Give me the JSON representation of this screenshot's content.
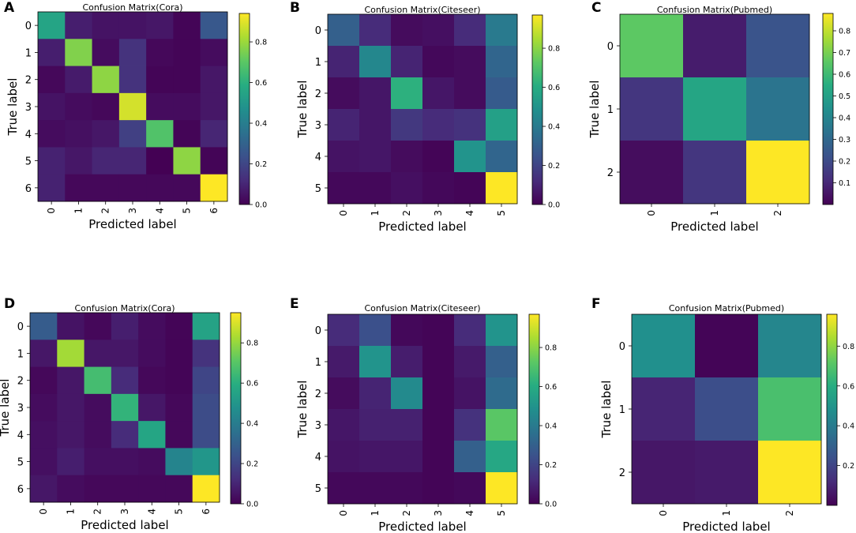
{
  "figure": {
    "background": "#ffffff",
    "colormap": "viridis"
  },
  "chart_data": [
    {
      "panel_label": "A",
      "type": "heatmap",
      "title": "Confusion Matrix(Cora)",
      "xlabel": "Predicted label",
      "ylabel": "True label",
      "x_ticks": [
        "0",
        "1",
        "2",
        "3",
        "4",
        "5",
        "6"
      ],
      "y_ticks": [
        "0",
        "1",
        "2",
        "3",
        "4",
        "5",
        "6"
      ],
      "values": [
        [
          0.55,
          0.08,
          0.05,
          0.05,
          0.06,
          0.01,
          0.26
        ],
        [
          0.08,
          0.76,
          0.03,
          0.14,
          0.02,
          0.01,
          0.03
        ],
        [
          0.02,
          0.07,
          0.78,
          0.14,
          0.01,
          0.01,
          0.06
        ],
        [
          0.05,
          0.03,
          0.02,
          0.88,
          0.03,
          0.03,
          0.06
        ],
        [
          0.03,
          0.04,
          0.06,
          0.18,
          0.68,
          0.01,
          0.1
        ],
        [
          0.09,
          0.06,
          0.1,
          0.1,
          0.0,
          0.78,
          0.01
        ],
        [
          0.09,
          0.02,
          0.02,
          0.02,
          0.02,
          0.02,
          0.94
        ]
      ],
      "colorbar": {
        "min": 0.0,
        "max": 0.94,
        "ticks": [
          0.0,
          0.2,
          0.4,
          0.6,
          0.8
        ],
        "tick_labels": [
          "0.0",
          "0.2",
          "0.4",
          "0.6",
          "0.8"
        ]
      }
    },
    {
      "panel_label": "B",
      "type": "heatmap",
      "title": "Confusion Matrix(Citeseer)",
      "xlabel": "Predicted label",
      "ylabel": "True label",
      "x_ticks": [
        "0",
        "1",
        "2",
        "3",
        "4",
        "5"
      ],
      "y_ticks": [
        "0",
        "1",
        "2",
        "3",
        "4",
        "5"
      ],
      "values": [
        [
          0.3,
          0.12,
          0.03,
          0.04,
          0.12,
          0.4
        ],
        [
          0.1,
          0.45,
          0.1,
          0.02,
          0.03,
          0.32
        ],
        [
          0.03,
          0.06,
          0.62,
          0.06,
          0.03,
          0.28
        ],
        [
          0.1,
          0.06,
          0.16,
          0.12,
          0.14,
          0.55
        ],
        [
          0.05,
          0.06,
          0.03,
          0.01,
          0.5,
          0.32
        ],
        [
          0.02,
          0.02,
          0.04,
          0.02,
          0.01,
          0.97
        ]
      ],
      "colorbar": {
        "min": 0.0,
        "max": 0.97,
        "ticks": [
          0.0,
          0.2,
          0.4,
          0.6,
          0.8
        ],
        "tick_labels": [
          "0.0",
          "0.2",
          "0.4",
          "0.6",
          "0.8"
        ]
      }
    },
    {
      "panel_label": "C",
      "type": "heatmap",
      "title": "Confusion Matrix(Pubmed)",
      "xlabel": "Predicted label",
      "ylabel": "True label",
      "x_ticks": [
        "0",
        "1",
        "2"
      ],
      "y_ticks": [
        "0",
        "1",
        "2"
      ],
      "values": [
        [
          0.66,
          0.07,
          0.23
        ],
        [
          0.14,
          0.52,
          0.34
        ],
        [
          0.03,
          0.14,
          0.88
        ]
      ],
      "colorbar": {
        "min": 0.0,
        "max": 0.88,
        "ticks": [
          0.1,
          0.2,
          0.3,
          0.4,
          0.5,
          0.6,
          0.7,
          0.8
        ],
        "tick_labels": [
          "0.1",
          "0.2",
          "0.3",
          "0.4",
          "0.5",
          "0.6",
          "0.7",
          "0.8"
        ]
      }
    },
    {
      "panel_label": "D",
      "type": "heatmap",
      "title": "Confusion Matrix(Cora)",
      "xlabel": "Predicted label",
      "ylabel": "True label",
      "x_ticks": [
        "0",
        "1",
        "2",
        "3",
        "4",
        "5",
        "6"
      ],
      "y_ticks": [
        "0",
        "1",
        "2",
        "3",
        "4",
        "5",
        "6"
      ],
      "values": [
        [
          0.28,
          0.05,
          0.02,
          0.08,
          0.03,
          0.01,
          0.55
        ],
        [
          0.06,
          0.82,
          0.06,
          0.06,
          0.03,
          0.01,
          0.14
        ],
        [
          0.02,
          0.06,
          0.66,
          0.12,
          0.02,
          0.01,
          0.2
        ],
        [
          0.03,
          0.06,
          0.03,
          0.62,
          0.06,
          0.02,
          0.22
        ],
        [
          0.04,
          0.06,
          0.03,
          0.12,
          0.56,
          0.02,
          0.22
        ],
        [
          0.04,
          0.08,
          0.04,
          0.04,
          0.03,
          0.43,
          0.5
        ],
        [
          0.06,
          0.03,
          0.02,
          0.02,
          0.02,
          0.02,
          0.95
        ]
      ],
      "colorbar": {
        "min": 0.0,
        "max": 0.95,
        "ticks": [
          0.0,
          0.2,
          0.4,
          0.6,
          0.8
        ],
        "tick_labels": [
          "0.0",
          "0.2",
          "0.4",
          "0.6",
          "0.8"
        ]
      }
    },
    {
      "panel_label": "E",
      "type": "heatmap",
      "title": "Confusion Matrix(Citeseer)",
      "xlabel": "Predicted label",
      "ylabel": "True label",
      "x_ticks": [
        "0",
        "1",
        "2",
        "3",
        "4",
        "5"
      ],
      "y_ticks": [
        "0",
        "1",
        "2",
        "3",
        "4",
        "5"
      ],
      "values": [
        [
          0.12,
          0.24,
          0.02,
          0.01,
          0.12,
          0.5
        ],
        [
          0.07,
          0.5,
          0.08,
          0.01,
          0.07,
          0.3
        ],
        [
          0.03,
          0.1,
          0.46,
          0.01,
          0.05,
          0.34
        ],
        [
          0.06,
          0.09,
          0.09,
          0.01,
          0.14,
          0.72
        ],
        [
          0.05,
          0.06,
          0.06,
          0.01,
          0.3,
          0.58
        ],
        [
          0.02,
          0.02,
          0.02,
          0.01,
          0.02,
          0.97
        ]
      ],
      "colorbar": {
        "min": 0.0,
        "max": 0.97,
        "ticks": [
          0.0,
          0.2,
          0.4,
          0.6,
          0.8
        ],
        "tick_labels": [
          "0.0",
          "0.2",
          "0.4",
          "0.6",
          "0.8"
        ]
      }
    },
    {
      "panel_label": "F",
      "type": "heatmap",
      "title": "Confusion Matrix(Pubmed)",
      "xlabel": "Predicted label",
      "ylabel": "True label",
      "x_ticks": [
        "0",
        "1",
        "2"
      ],
      "y_ticks": [
        "0",
        "1",
        "2"
      ],
      "values": [
        [
          0.48,
          0.01,
          0.44
        ],
        [
          0.1,
          0.23,
          0.68
        ],
        [
          0.06,
          0.07,
          0.96
        ]
      ],
      "colorbar": {
        "min": 0.0,
        "max": 0.96,
        "ticks": [
          0.2,
          0.4,
          0.6,
          0.8
        ],
        "tick_labels": [
          "0.2",
          "0.4",
          "0.6",
          "0.8"
        ]
      }
    }
  ]
}
